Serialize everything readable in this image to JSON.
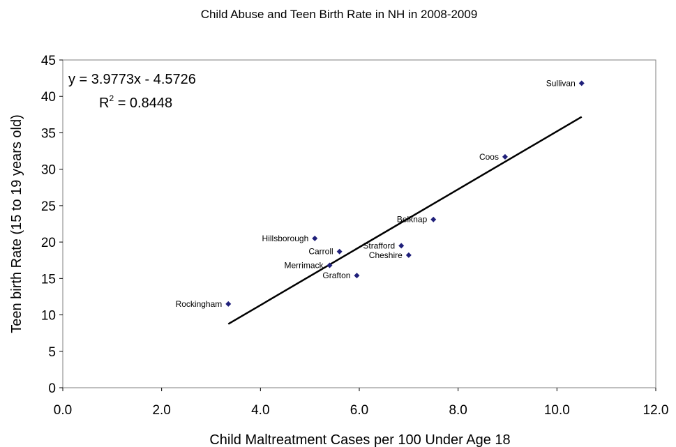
{
  "chart_data": {
    "type": "scatter",
    "title": "Child Abuse and Teen Birth Rate in NH in 2008-2009",
    "xlabel": "Child Maltreatment Cases per 100 Under Age 18",
    "ylabel": "Teen birth Rate (15 to 19 years old)",
    "xlim": [
      0,
      12
    ],
    "ylim": [
      0,
      45
    ],
    "x_ticks": [
      "0.0",
      "2.0",
      "4.0",
      "6.0",
      "8.0",
      "10.0",
      "12.0"
    ],
    "y_ticks": [
      "0",
      "5",
      "10",
      "15",
      "20",
      "25",
      "30",
      "35",
      "40",
      "45"
    ],
    "grid": false,
    "marker_color": "#1f1f7a",
    "points": [
      {
        "label": "Sullivan",
        "x": 10.5,
        "y": 41.8
      },
      {
        "label": "Coos",
        "x": 8.95,
        "y": 31.7
      },
      {
        "label": "Belknap",
        "x": 7.5,
        "y": 23.1
      },
      {
        "label": "Hillsborough",
        "x": 5.1,
        "y": 20.5
      },
      {
        "label": "Strafford",
        "x": 6.85,
        "y": 19.5
      },
      {
        "label": "Carroll",
        "x": 5.6,
        "y": 18.7
      },
      {
        "label": "Cheshire",
        "x": 7.0,
        "y": 18.2
      },
      {
        "label": "Merrimack",
        "x": 5.4,
        "y": 16.8
      },
      {
        "label": "Grafton",
        "x": 5.95,
        "y": 15.4
      },
      {
        "label": "Rockingham",
        "x": 3.35,
        "y": 11.5
      }
    ],
    "trendline": {
      "slope": 3.9773,
      "intercept": -4.5726,
      "x_range": [
        3.35,
        10.5
      ],
      "equation": "y = 3.9773x - 4.5726",
      "r2_prefix": "R",
      "r2_sup": "2",
      "r2_value": " = 0.8448"
    }
  }
}
